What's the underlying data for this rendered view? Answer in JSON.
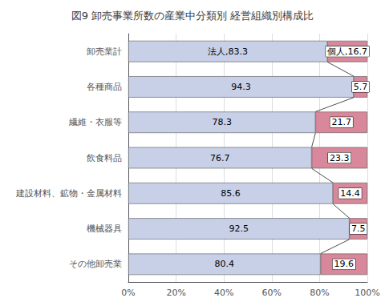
{
  "chart_data": {
    "type": "bar",
    "title": "図9 卸売事業所数の産業中分類別 経営組織別構成比",
    "orientation": "horizontal",
    "stacked": true,
    "categories": [
      "卸売業計",
      "各種商品",
      "繊維・衣服等",
      "飲食料品",
      "建設材料、鉱物・金属材料",
      "機械器具",
      "その他卸売業"
    ],
    "series": [
      {
        "name": "法人",
        "color": "#c8d0e8",
        "values": [
          83.3,
          94.3,
          78.3,
          76.7,
          85.6,
          92.5,
          80.4
        ],
        "value_labels": [
          "法人,83.3",
          "94.3",
          "78.3",
          "76.7",
          "85.6",
          "92.5",
          "80.4"
        ]
      },
      {
        "name": "個人",
        "color": "#d8889a",
        "values": [
          16.7,
          5.7,
          21.7,
          23.3,
          14.4,
          7.5,
          19.6
        ],
        "value_labels": [
          "個人,16.7",
          "5.7",
          "21.7",
          "23.3",
          "14.4",
          "7.5",
          "19.6"
        ]
      }
    ],
    "data_labels": true,
    "xlim": [
      0,
      100
    ],
    "xticks": [
      {
        "value": 0,
        "label": "0%"
      },
      {
        "value": 20,
        "label": "20%"
      },
      {
        "value": 40,
        "label": "40%"
      },
      {
        "value": 60,
        "label": "60%"
      },
      {
        "value": 80,
        "label": "80%"
      },
      {
        "value": 100,
        "label": "100%"
      }
    ],
    "grid": true
  }
}
